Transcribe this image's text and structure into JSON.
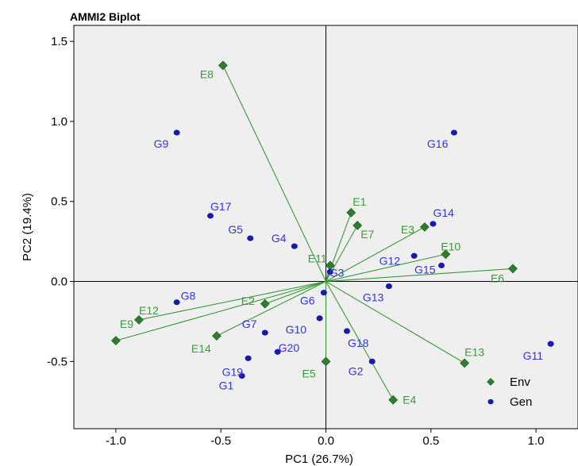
{
  "chart_data": {
    "type": "scatter",
    "title": "AMMI2 Biplot",
    "xlabel": "PC1 (26.7%)",
    "ylabel": "PC2 (19.4%)",
    "xlim": [
      -1.2,
      1.2
    ],
    "ylim": [
      -0.92,
      1.6
    ],
    "xticks": [
      -1.0,
      -0.5,
      0.0,
      0.5,
      1.0
    ],
    "xtick_labels": [
      "-1.0",
      "-0.5",
      "0.0",
      "0.5",
      "1.0"
    ],
    "yticks": [
      -0.5,
      0.0,
      0.5,
      1.0,
      1.5
    ],
    "ytick_labels": [
      "-0.5",
      "0.0",
      "0.5",
      "1.0",
      "1.5"
    ],
    "reference_lines": {
      "x": 0,
      "y": 0
    },
    "legend": {
      "placement": "bottom-right",
      "entries": [
        {
          "name": "Env",
          "marker": "diamond",
          "color": "#2e7d2e"
        },
        {
          "name": "Gen",
          "marker": "dot",
          "color": "#1a1aa8"
        }
      ]
    },
    "series": [
      {
        "name": "Env",
        "marker": "diamond",
        "color": "#2e7d2e",
        "label_color": "#3c9a3c",
        "line_color": "#3a9a3a",
        "vectors_from_origin": true,
        "points": [
          {
            "label": "E1",
            "x": 0.12,
            "y": 0.43
          },
          {
            "label": "E2",
            "x": -0.29,
            "y": -0.14
          },
          {
            "label": "E3",
            "x": 0.47,
            "y": 0.34
          },
          {
            "label": "E4",
            "x": 0.32,
            "y": -0.74
          },
          {
            "label": "E5",
            "x": 0.0,
            "y": -0.5
          },
          {
            "label": "E6",
            "x": 0.89,
            "y": 0.08
          },
          {
            "label": "E7",
            "x": 0.15,
            "y": 0.35
          },
          {
            "label": "E8",
            "x": -0.49,
            "y": 1.35
          },
          {
            "label": "E9",
            "x": -1.0,
            "y": -0.37
          },
          {
            "label": "E10",
            "x": 0.57,
            "y": 0.17
          },
          {
            "label": "E11",
            "x": 0.02,
            "y": 0.1
          },
          {
            "label": "E12",
            "x": -0.89,
            "y": -0.24
          },
          {
            "label": "E13",
            "x": 0.66,
            "y": -0.51
          },
          {
            "label": "E14",
            "x": -0.52,
            "y": -0.34
          }
        ]
      },
      {
        "name": "Gen",
        "marker": "dot",
        "color": "#1a1aa8",
        "label_color": "#3434d8",
        "points": [
          {
            "label": "G1",
            "x": -0.4,
            "y": -0.59
          },
          {
            "label": "G2",
            "x": 0.22,
            "y": -0.5
          },
          {
            "label": "G3",
            "x": 0.02,
            "y": 0.06
          },
          {
            "label": "G4",
            "x": -0.15,
            "y": 0.22
          },
          {
            "label": "G5",
            "x": -0.36,
            "y": 0.27
          },
          {
            "label": "G6",
            "x": -0.01,
            "y": -0.07
          },
          {
            "label": "G7",
            "x": -0.29,
            "y": -0.32
          },
          {
            "label": "G8",
            "x": -0.71,
            "y": -0.13
          },
          {
            "label": "G9",
            "x": -0.71,
            "y": 0.93
          },
          {
            "label": "G10",
            "x": -0.03,
            "y": -0.23
          },
          {
            "label": "G11",
            "x": 1.07,
            "y": -0.39
          },
          {
            "label": "G12",
            "x": 0.42,
            "y": 0.16
          },
          {
            "label": "G13",
            "x": 0.3,
            "y": -0.03
          },
          {
            "label": "G14",
            "x": 0.51,
            "y": 0.36
          },
          {
            "label": "G15",
            "x": 0.55,
            "y": 0.1
          },
          {
            "label": "G16",
            "x": 0.61,
            "y": 0.93
          },
          {
            "label": "G17",
            "x": -0.55,
            "y": 0.41
          },
          {
            "label": "G18",
            "x": 0.1,
            "y": -0.31
          },
          {
            "label": "G19",
            "x": -0.37,
            "y": -0.48
          },
          {
            "label": "G20",
            "x": -0.23,
            "y": -0.44
          }
        ]
      }
    ]
  }
}
